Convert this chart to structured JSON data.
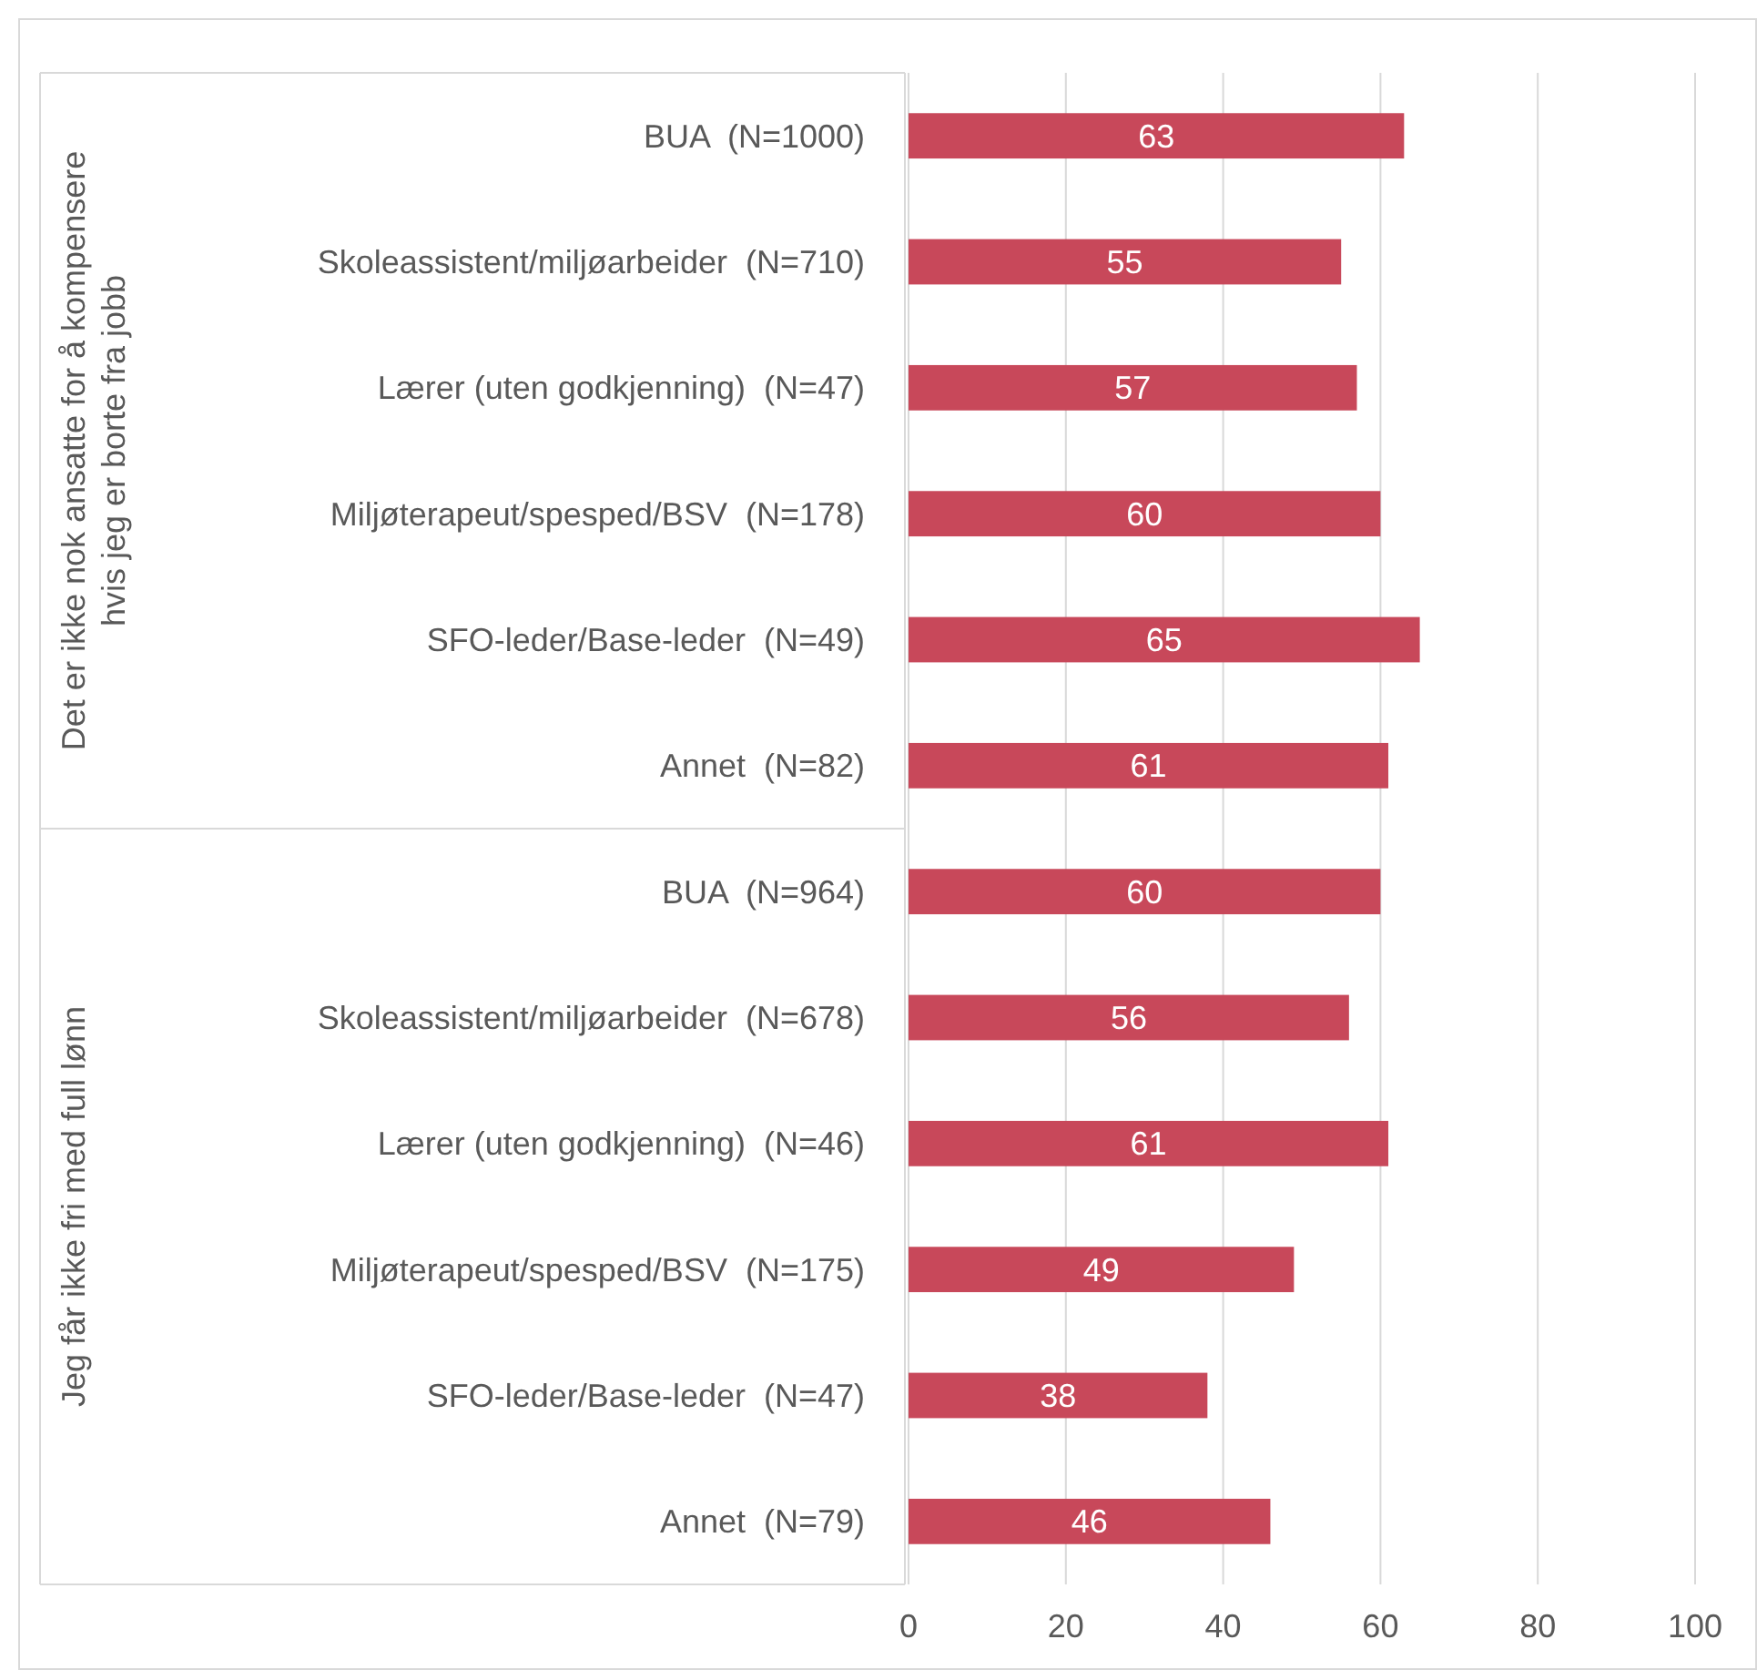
{
  "chart_data": {
    "type": "bar",
    "orientation": "horizontal",
    "categories": [
      "BUA  (N=1000)",
      "Skoleassistent/miljøarbeider  (N=710)",
      "Lærer (uten godkjenning)  (N=47)",
      "Miljøterapeut/spesped/BSV  (N=178)",
      "SFO-leder/Base-leder  (N=49)",
      "Annet  (N=82)",
      "BUA  (N=964)",
      "Skoleassistent/miljøarbeider  (N=678)",
      "Lærer (uten godkjenning)  (N=46)",
      "Miljøterapeut/spesped/BSV  (N=175)",
      "SFO-leder/Base-leder  (N=47)",
      "Annet  (N=79)"
    ],
    "values": [
      63,
      55,
      57,
      60,
      65,
      61,
      60,
      56,
      61,
      49,
      38,
      46
    ],
    "color": "#c8485a",
    "xlim": [
      0,
      100
    ],
    "xticks": [
      0,
      20,
      40,
      60,
      80,
      100
    ],
    "grid": "x",
    "data_labels": true,
    "annotations": [
      "Det er ikke nok ansatte for å kompensere hvis jeg er borte fra jobb",
      "Jeg får ikke fri med full lønn"
    ]
  }
}
